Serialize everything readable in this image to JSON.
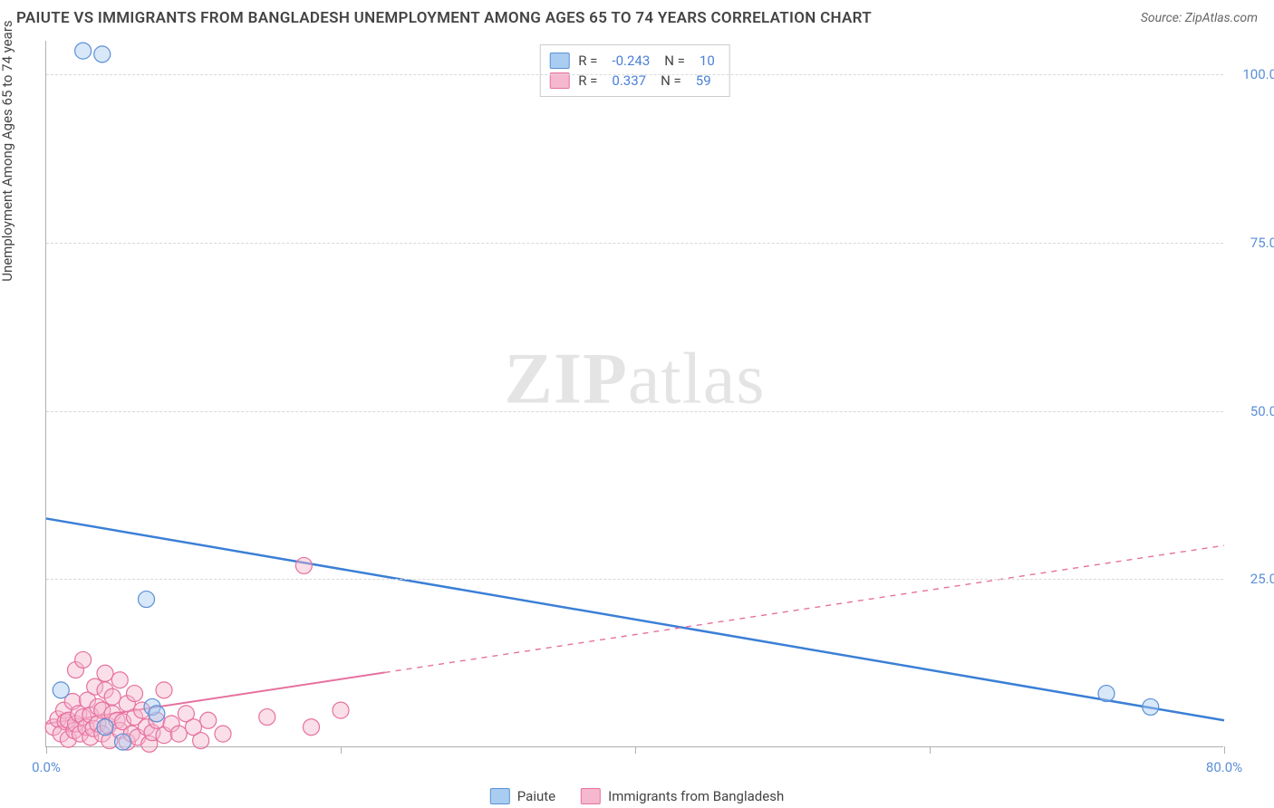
{
  "title": "PAIUTE VS IMMIGRANTS FROM BANGLADESH UNEMPLOYMENT AMONG AGES 65 TO 74 YEARS CORRELATION CHART",
  "source_label": "Source: ZipAtlas.com",
  "watermark_a": "ZIP",
  "watermark_b": "atlas",
  "y_axis_label": "Unemployment Among Ages 65 to 74 years",
  "chart": {
    "type": "scatter",
    "xlim": [
      0,
      80
    ],
    "ylim": [
      0,
      105
    ],
    "x_ticks": [
      0,
      20,
      40,
      60,
      80
    ],
    "x_tick_labels": [
      "0.0%",
      "",
      "",
      "",
      "80.0%"
    ],
    "y_ticks": [
      25,
      50,
      75,
      100
    ],
    "y_tick_labels": [
      "25.0%",
      "50.0%",
      "75.0%",
      "100.0%"
    ],
    "background_color": "#ffffff",
    "grid_color": "#d8d8d8",
    "marker_radius": 9,
    "marker_opacity": 0.45,
    "series": [
      {
        "name": "Paiute",
        "color_fill": "#a9cdf0",
        "color_stroke": "#5b8fd6",
        "R": "-0.243",
        "N": "10",
        "trend": {
          "x1": 0,
          "y1": 34,
          "x2": 80,
          "y2": 4,
          "solid_until_x": 80,
          "stroke": "#3b7fd6",
          "width": 2.5
        },
        "points": [
          [
            2.5,
            103.5
          ],
          [
            3.8,
            103.0
          ],
          [
            1.0,
            8.5
          ],
          [
            6.8,
            22.0
          ],
          [
            7.2,
            6.0
          ],
          [
            7.5,
            5.0
          ],
          [
            5.2,
            0.8
          ],
          [
            72.0,
            8.0
          ],
          [
            75.0,
            6.0
          ],
          [
            4.0,
            3.0
          ]
        ]
      },
      {
        "name": "Immigrants from Bangladesh",
        "color_fill": "#f5b8ce",
        "color_stroke": "#e6719e",
        "R": "0.337",
        "N": "59",
        "trend": {
          "x1": 0,
          "y1": 3.5,
          "x2": 80,
          "y2": 30,
          "solid_until_x": 23,
          "stroke": "#e6719e",
          "width": 2
        },
        "points": [
          [
            0.5,
            3.0
          ],
          [
            0.8,
            4.2
          ],
          [
            1.0,
            2.0
          ],
          [
            1.2,
            5.5
          ],
          [
            1.3,
            3.8
          ],
          [
            1.5,
            1.2
          ],
          [
            1.5,
            4.0
          ],
          [
            1.8,
            6.8
          ],
          [
            1.9,
            2.5
          ],
          [
            2.0,
            11.5
          ],
          [
            2.0,
            3.5
          ],
          [
            2.2,
            5.0
          ],
          [
            2.3,
            2.0
          ],
          [
            2.5,
            4.5
          ],
          [
            2.5,
            13.0
          ],
          [
            2.7,
            3.0
          ],
          [
            2.8,
            7.0
          ],
          [
            3.0,
            1.5
          ],
          [
            3.0,
            4.8
          ],
          [
            3.2,
            2.8
          ],
          [
            3.3,
            9.0
          ],
          [
            3.5,
            3.5
          ],
          [
            3.5,
            6.0
          ],
          [
            3.8,
            2.0
          ],
          [
            3.8,
            5.5
          ],
          [
            4.0,
            8.5
          ],
          [
            4.0,
            11.0
          ],
          [
            4.2,
            3.2
          ],
          [
            4.3,
            1.0
          ],
          [
            4.5,
            5.0
          ],
          [
            4.5,
            7.5
          ],
          [
            4.8,
            4.0
          ],
          [
            5.0,
            2.5
          ],
          [
            5.0,
            10.0
          ],
          [
            5.2,
            3.8
          ],
          [
            5.5,
            6.5
          ],
          [
            5.5,
            0.8
          ],
          [
            5.8,
            2.0
          ],
          [
            6.0,
            4.5
          ],
          [
            6.0,
            8.0
          ],
          [
            6.2,
            1.5
          ],
          [
            6.5,
            5.5
          ],
          [
            6.8,
            3.0
          ],
          [
            7.0,
            0.5
          ],
          [
            7.2,
            2.2
          ],
          [
            7.5,
            4.0
          ],
          [
            8.0,
            1.8
          ],
          [
            8.0,
            8.5
          ],
          [
            8.5,
            3.5
          ],
          [
            9.0,
            2.0
          ],
          [
            9.5,
            5.0
          ],
          [
            10.0,
            3.0
          ],
          [
            10.5,
            1.0
          ],
          [
            11.0,
            4.0
          ],
          [
            12.0,
            2.0
          ],
          [
            15.0,
            4.5
          ],
          [
            18.0,
            3.0
          ],
          [
            17.5,
            27.0
          ],
          [
            20.0,
            5.5
          ]
        ]
      }
    ]
  },
  "legend_bottom": {
    "a": "Paiute",
    "b": "Immigrants from Bangladesh"
  }
}
